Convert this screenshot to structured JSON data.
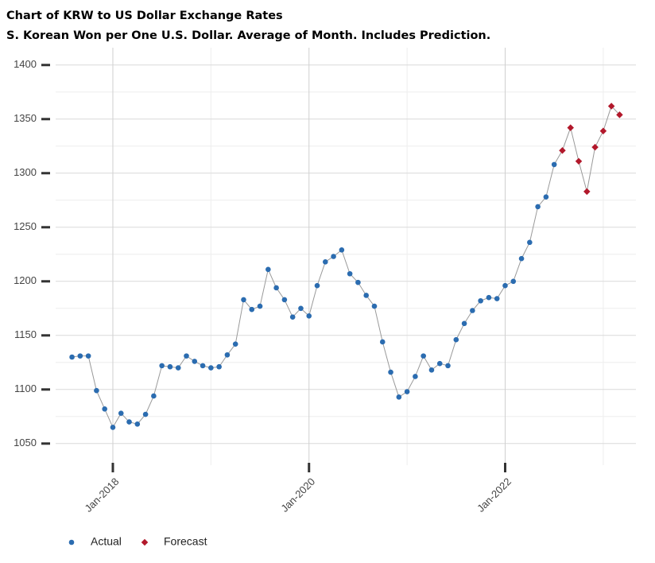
{
  "chart_data": {
    "type": "line",
    "title": "Chart of KRW to US Dollar Exchange Rates",
    "subtitle": "S. Korean Won per One U.S. Dollar.  Average of Month.  Includes Prediction.",
    "xlim": [
      "2017-06",
      "2023-05"
    ],
    "xticks": [
      {
        "value": "2018-01",
        "label": "Jan-2018"
      },
      {
        "value": "2020-01",
        "label": "Jan-2020"
      },
      {
        "value": "2022-01",
        "label": "Jan-2022"
      }
    ],
    "ylim": [
      1030,
      1416
    ],
    "yticks": [
      1050,
      1100,
      1150,
      1200,
      1250,
      1300,
      1350,
      1400
    ],
    "grid": true,
    "legend": "bottom-left",
    "series": [
      {
        "name": "Actual",
        "color": "#2b6cb0",
        "x": [
          "2017-08",
          "2017-09",
          "2017-10",
          "2017-11",
          "2017-12",
          "2018-01",
          "2018-02",
          "2018-03",
          "2018-04",
          "2018-05",
          "2018-06",
          "2018-07",
          "2018-08",
          "2018-09",
          "2018-10",
          "2018-11",
          "2018-12",
          "2019-01",
          "2019-02",
          "2019-03",
          "2019-04",
          "2019-05",
          "2019-06",
          "2019-07",
          "2019-08",
          "2019-09",
          "2019-10",
          "2019-11",
          "2019-12",
          "2020-01",
          "2020-02",
          "2020-03",
          "2020-04",
          "2020-05",
          "2020-06",
          "2020-07",
          "2020-08",
          "2020-09",
          "2020-10",
          "2020-11",
          "2020-12",
          "2021-01",
          "2021-02",
          "2021-03",
          "2021-04",
          "2021-05",
          "2021-06",
          "2021-07",
          "2021-08",
          "2021-09",
          "2021-10",
          "2021-11",
          "2021-12",
          "2022-01",
          "2022-02",
          "2022-03",
          "2022-04",
          "2022-05",
          "2022-06",
          "2022-07"
        ],
        "values": [
          1130,
          1131,
          1131,
          1099,
          1082,
          1065,
          1078,
          1070,
          1068,
          1077,
          1094,
          1122,
          1121,
          1120,
          1131,
          1126,
          1122,
          1120,
          1121,
          1132,
          1142,
          1183,
          1174,
          1177,
          1211,
          1194,
          1183,
          1167,
          1175,
          1168,
          1196,
          1218,
          1223,
          1229,
          1207,
          1199,
          1187,
          1177,
          1144,
          1116,
          1093,
          1098,
          1112,
          1131,
          1118,
          1124,
          1122,
          1146,
          1161,
          1173,
          1182,
          1185,
          1184,
          1196,
          1200,
          1221,
          1236,
          1269,
          1278,
          1308
        ]
      },
      {
        "name": "Forecast",
        "color": "#b2182b",
        "x": [
          "2022-08",
          "2022-09",
          "2022-10",
          "2022-11",
          "2022-12",
          "2023-01",
          "2023-02",
          "2023-03"
        ],
        "values": [
          1321,
          1342,
          1311,
          1283,
          1324,
          1339,
          1362,
          1354
        ]
      }
    ]
  }
}
